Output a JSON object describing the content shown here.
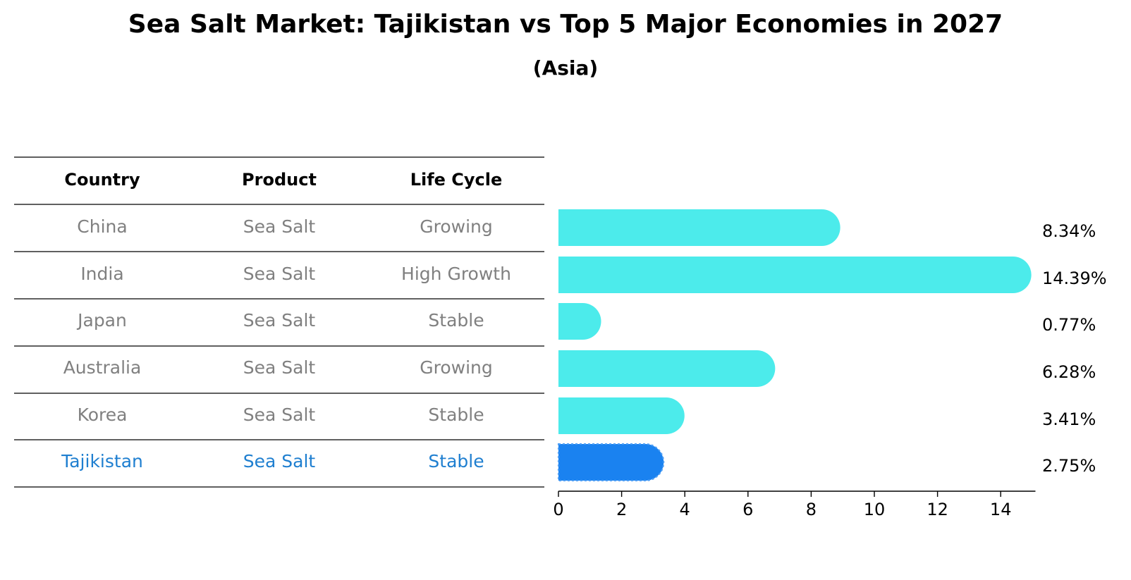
{
  "title": "Sea Salt Market: Tajikistan vs Top 5 Major Economies in 2027",
  "subtitle": "(Asia)",
  "table": {
    "headers": [
      "Country",
      "Product",
      "Life Cycle"
    ],
    "rows": [
      [
        "China",
        "Sea Salt",
        "Growing"
      ],
      [
        "India",
        "Sea Salt",
        "High Growth"
      ],
      [
        "Japan",
        "Sea Salt",
        "Stable"
      ],
      [
        "Australia",
        "Sea Salt",
        "Growing"
      ],
      [
        "Korea",
        "Sea Salt",
        "Stable"
      ],
      [
        "Tajikistan",
        "Sea Salt",
        "Stable"
      ]
    ],
    "highlight_row": 5
  },
  "colors": {
    "bar": "#4cebeb",
    "highlight_bar": "#1a82f0",
    "highlight_text": "#1f7fd0",
    "row_text": "#808080",
    "header_text": "#000000"
  },
  "chart_data": {
    "type": "bar",
    "orientation": "horizontal",
    "categories": [
      "China",
      "India",
      "Japan",
      "Australia",
      "Korea",
      "Tajikistan"
    ],
    "values": [
      8.34,
      14.39,
      0.77,
      6.28,
      3.41,
      2.75
    ],
    "value_labels": [
      "8.34%",
      "14.39%",
      "0.77%",
      "6.28%",
      "3.41%",
      "2.75%"
    ],
    "xticks": [
      0,
      2,
      4,
      6,
      8,
      10,
      12,
      14
    ],
    "xlim": [
      0,
      15.1
    ],
    "grid": false
  }
}
